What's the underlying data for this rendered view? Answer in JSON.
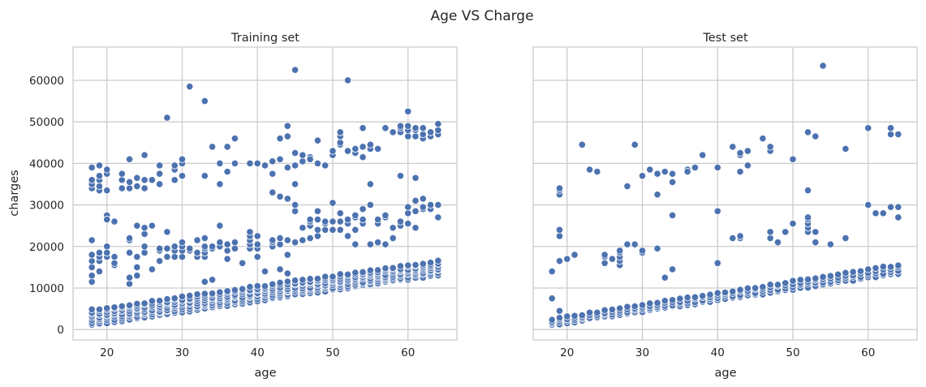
{
  "figure": {
    "title": "Age VS Charge"
  },
  "chart_data": [
    {
      "type": "scatter",
      "title": "Training set",
      "xlabel": "age",
      "ylabel": "charges",
      "xlim": [
        15.5,
        66.5
      ],
      "ylim": [
        -2500,
        68000
      ],
      "xticks": [
        20,
        30,
        40,
        50,
        60
      ],
      "yticks": [
        0,
        10000,
        20000,
        30000,
        40000,
        50000,
        60000
      ],
      "grid": true,
      "marker_color": "#4c72b0",
      "base_trend": {
        "description": "dense lower band of points",
        "x_range": [
          18,
          64
        ],
        "y_at_18": [
          1100,
          4700
        ],
        "y_at_64": [
          13200,
          16500
        ]
      },
      "points": [
        [
          18,
          11500
        ],
        [
          18,
          13000
        ],
        [
          18,
          15000
        ],
        [
          18,
          16500
        ],
        [
          18,
          18000
        ],
        [
          18,
          21500
        ],
        [
          19,
          16500
        ],
        [
          19,
          17500
        ],
        [
          19,
          18500
        ],
        [
          19,
          14000
        ],
        [
          20,
          20000
        ],
        [
          20,
          27500
        ],
        [
          20,
          26500
        ],
        [
          20,
          17500
        ],
        [
          20,
          18500
        ],
        [
          21,
          15500
        ],
        [
          21,
          16000
        ],
        [
          21,
          17500
        ],
        [
          21,
          26000
        ],
        [
          23,
          11000
        ],
        [
          23,
          12500
        ],
        [
          23,
          18500
        ],
        [
          23,
          21500
        ],
        [
          23,
          22000
        ],
        [
          24,
          13000
        ],
        [
          24,
          15000
        ],
        [
          24,
          17500
        ],
        [
          24,
          25000
        ],
        [
          25,
          18500
        ],
        [
          25,
          20000
        ],
        [
          25,
          23000
        ],
        [
          25,
          24500
        ],
        [
          26,
          14500
        ],
        [
          26,
          25000
        ],
        [
          27,
          16500
        ],
        [
          27,
          19000
        ],
        [
          27,
          19500
        ],
        [
          28,
          17500
        ],
        [
          28,
          23500
        ],
        [
          28,
          19500
        ],
        [
          29,
          17500
        ],
        [
          29,
          19000
        ],
        [
          29,
          20000
        ],
        [
          30,
          17500
        ],
        [
          30,
          19000
        ],
        [
          30,
          20000
        ],
        [
          30,
          21000
        ],
        [
          31,
          19000
        ],
        [
          31,
          19500
        ],
        [
          32,
          17500
        ],
        [
          32,
          18500
        ],
        [
          32,
          21500
        ],
        [
          33,
          11500
        ],
        [
          33,
          17500
        ],
        [
          33,
          18500
        ],
        [
          33,
          19500
        ],
        [
          33,
          20000
        ],
        [
          33,
          22000
        ],
        [
          34,
          12000
        ],
        [
          34,
          19500
        ],
        [
          34,
          20000
        ],
        [
          35,
          20000
        ],
        [
          35,
          21000
        ],
        [
          35,
          25000
        ],
        [
          36,
          17000
        ],
        [
          36,
          19000
        ],
        [
          36,
          20500
        ],
        [
          37,
          19500
        ],
        [
          37,
          21000
        ],
        [
          38,
          16000
        ],
        [
          39,
          19500
        ],
        [
          39,
          20500
        ],
        [
          39,
          21500
        ],
        [
          39,
          22500
        ],
        [
          39,
          23500
        ],
        [
          40,
          17500
        ],
        [
          40,
          19500
        ],
        [
          40,
          20500
        ],
        [
          40,
          22500
        ],
        [
          41,
          14000
        ],
        [
          42,
          20000
        ],
        [
          42,
          21000
        ],
        [
          42,
          21500
        ],
        [
          42,
          33000
        ],
        [
          43,
          14500
        ],
        [
          43,
          20500
        ],
        [
          43,
          22000
        ],
        [
          43,
          32000
        ],
        [
          44,
          13500
        ],
        [
          44,
          18000
        ],
        [
          44,
          21500
        ],
        [
          44,
          31500
        ],
        [
          45,
          21000
        ],
        [
          45,
          28500
        ],
        [
          45,
          30000
        ],
        [
          45,
          35000
        ],
        [
          46,
          21500
        ],
        [
          46,
          24500
        ],
        [
          47,
          22000
        ],
        [
          47,
          25000
        ],
        [
          47,
          26000
        ],
        [
          47,
          26500
        ],
        [
          48,
          22500
        ],
        [
          48,
          24000
        ],
        [
          48,
          26500
        ],
        [
          48,
          28500
        ],
        [
          49,
          24000
        ],
        [
          49,
          25500
        ],
        [
          49,
          26000
        ],
        [
          50,
          24000
        ],
        [
          50,
          26000
        ],
        [
          50,
          30500
        ],
        [
          51,
          26000
        ],
        [
          51,
          28000
        ],
        [
          51,
          24000
        ],
        [
          52,
          22500
        ],
        [
          52,
          25500
        ],
        [
          52,
          26500
        ],
        [
          53,
          20500
        ],
        [
          53,
          24000
        ],
        [
          53,
          27000
        ],
        [
          53,
          27500
        ],
        [
          54,
          25500
        ],
        [
          54,
          26500
        ],
        [
          54,
          29000
        ],
        [
          55,
          20500
        ],
        [
          55,
          30000
        ],
        [
          55,
          35000
        ],
        [
          56,
          21000
        ],
        [
          56,
          25500
        ],
        [
          56,
          26500
        ],
        [
          57,
          20500
        ],
        [
          57,
          27000
        ],
        [
          57,
          27500
        ],
        [
          58,
          22000
        ],
        [
          58,
          24500
        ],
        [
          59,
          25000
        ],
        [
          59,
          26000
        ],
        [
          59,
          37000
        ],
        [
          60,
          25500
        ],
        [
          60,
          28000
        ],
        [
          60,
          29500
        ],
        [
          61,
          24500
        ],
        [
          61,
          28500
        ],
        [
          61,
          31000
        ],
        [
          61,
          36500
        ],
        [
          62,
          29000
        ],
        [
          62,
          29500
        ],
        [
          62,
          31500
        ],
        [
          63,
          29000
        ],
        [
          63,
          30000
        ],
        [
          64,
          27000
        ],
        [
          64,
          30000
        ],
        [
          18,
          34000
        ],
        [
          18,
          35000
        ],
        [
          18,
          36000
        ],
        [
          18,
          39000
        ],
        [
          19,
          33500
        ],
        [
          19,
          34500
        ],
        [
          19,
          36000
        ],
        [
          19,
          37000
        ],
        [
          19,
          39500
        ],
        [
          20,
          33500
        ],
        [
          20,
          37500
        ],
        [
          20,
          38500
        ],
        [
          22,
          34000
        ],
        [
          22,
          36000
        ],
        [
          22,
          37500
        ],
        [
          23,
          34000
        ],
        [
          23,
          35500
        ],
        [
          23,
          41000
        ],
        [
          24,
          34500
        ],
        [
          24,
          36500
        ],
        [
          25,
          34000
        ],
        [
          25,
          36000
        ],
        [
          25,
          42000
        ],
        [
          26,
          36000
        ],
        [
          27,
          35000
        ],
        [
          27,
          37500
        ],
        [
          27,
          39500
        ],
        [
          28,
          51000
        ],
        [
          29,
          36000
        ],
        [
          29,
          38500
        ],
        [
          29,
          39500
        ],
        [
          30,
          37000
        ],
        [
          30,
          40000
        ],
        [
          30,
          41000
        ],
        [
          31,
          58500
        ],
        [
          33,
          37000
        ],
        [
          33,
          55000
        ],
        [
          34,
          44000
        ],
        [
          35,
          40000
        ],
        [
          35,
          35000
        ],
        [
          36,
          38000
        ],
        [
          36,
          44000
        ],
        [
          37,
          40000
        ],
        [
          37,
          46000
        ],
        [
          39,
          40000
        ],
        [
          40,
          40000
        ],
        [
          41,
          39500
        ],
        [
          42,
          37500
        ],
        [
          42,
          40500
        ],
        [
          43,
          41000
        ],
        [
          43,
          46000
        ],
        [
          44,
          46500
        ],
        [
          44,
          49000
        ],
        [
          44,
          39000
        ],
        [
          45,
          42500
        ],
        [
          45,
          62500
        ],
        [
          45,
          39500
        ],
        [
          46,
          40500
        ],
        [
          46,
          42000
        ],
        [
          47,
          41500
        ],
        [
          47,
          41000
        ],
        [
          48,
          40000
        ],
        [
          48,
          45500
        ],
        [
          49,
          39500
        ],
        [
          50,
          42000
        ],
        [
          50,
          43000
        ],
        [
          51,
          44500
        ],
        [
          51,
          45000
        ],
        [
          51,
          46500
        ],
        [
          51,
          47500
        ],
        [
          52,
          60000
        ],
        [
          52,
          43000
        ],
        [
          53,
          42500
        ],
        [
          53,
          43500
        ],
        [
          54,
          44000
        ],
        [
          54,
          48500
        ],
        [
          54,
          41500
        ],
        [
          55,
          43500
        ],
        [
          55,
          44500
        ],
        [
          56,
          43500
        ],
        [
          57,
          48500
        ],
        [
          58,
          47500
        ],
        [
          59,
          47500
        ],
        [
          59,
          48500
        ],
        [
          59,
          49000
        ],
        [
          60,
          46500
        ],
        [
          60,
          48000
        ],
        [
          60,
          49000
        ],
        [
          60,
          52500
        ],
        [
          61,
          46500
        ],
        [
          61,
          48000
        ],
        [
          61,
          48500
        ],
        [
          62,
          46000
        ],
        [
          62,
          47000
        ],
        [
          62,
          48500
        ],
        [
          63,
          46500
        ],
        [
          63,
          47500
        ],
        [
          64,
          47000
        ],
        [
          64,
          48000
        ],
        [
          64,
          49500
        ]
      ]
    },
    {
      "type": "scatter",
      "title": "Test set",
      "xlabel": "age",
      "ylabel": "",
      "xlim": [
        15.5,
        66.5
      ],
      "ylim": [
        -2500,
        68000
      ],
      "xticks": [
        20,
        30,
        40,
        50,
        60
      ],
      "yticks": [
        0,
        10000,
        20000,
        30000,
        40000,
        50000,
        60000
      ],
      "grid": true,
      "marker_color": "#4c72b0",
      "base_trend": {
        "description": "dense lower band of points",
        "x_range": [
          18,
          64
        ],
        "y_at_18": [
          1100,
          2500
        ],
        "y_at_64": [
          13500,
          15500
        ]
      },
      "points": [
        [
          18,
          7500
        ],
        [
          18,
          14000
        ],
        [
          19,
          4500
        ],
        [
          19,
          16500
        ],
        [
          19,
          22500
        ],
        [
          19,
          24000
        ],
        [
          20,
          17000
        ],
        [
          21,
          18000
        ],
        [
          25,
          16000
        ],
        [
          25,
          17500
        ],
        [
          25,
          18000
        ],
        [
          26,
          17000
        ],
        [
          27,
          15500
        ],
        [
          27,
          16500
        ],
        [
          27,
          17500
        ],
        [
          27,
          18500
        ],
        [
          27,
          19000
        ],
        [
          28,
          20500
        ],
        [
          29,
          20500
        ],
        [
          30,
          18500
        ],
        [
          30,
          19000
        ],
        [
          32,
          19500
        ],
        [
          32,
          32500
        ],
        [
          33,
          12500
        ],
        [
          34,
          14500
        ],
        [
          34,
          27500
        ],
        [
          40,
          16000
        ],
        [
          40,
          28500
        ],
        [
          42,
          22000
        ],
        [
          43,
          22000
        ],
        [
          43,
          22500
        ],
        [
          44,
          39500
        ],
        [
          47,
          22000
        ],
        [
          47,
          23500
        ],
        [
          48,
          21000
        ],
        [
          49,
          23500
        ],
        [
          50,
          25500
        ],
        [
          52,
          23500
        ],
        [
          52,
          24500
        ],
        [
          52,
          25500
        ],
        [
          52,
          26500
        ],
        [
          52,
          27000
        ],
        [
          52,
          33500
        ],
        [
          53,
          21000
        ],
        [
          53,
          23500
        ],
        [
          55,
          20500
        ],
        [
          57,
          22000
        ],
        [
          60,
          30000
        ],
        [
          61,
          28000
        ],
        [
          62,
          28000
        ],
        [
          63,
          29500
        ],
        [
          64,
          27000
        ],
        [
          64,
          29500
        ],
        [
          19,
          32500
        ],
        [
          19,
          33500
        ],
        [
          19,
          34000
        ],
        [
          22,
          44500
        ],
        [
          23,
          38500
        ],
        [
          24,
          38000
        ],
        [
          28,
          34500
        ],
        [
          29,
          44500
        ],
        [
          30,
          37000
        ],
        [
          31,
          38500
        ],
        [
          32,
          37500
        ],
        [
          33,
          38000
        ],
        [
          34,
          35500
        ],
        [
          34,
          37500
        ],
        [
          36,
          38500
        ],
        [
          36,
          38000
        ],
        [
          37,
          39000
        ],
        [
          38,
          42000
        ],
        [
          40,
          39000
        ],
        [
          42,
          44000
        ],
        [
          43,
          38000
        ],
        [
          43,
          42000
        ],
        [
          43,
          42500
        ],
        [
          44,
          43000
        ],
        [
          46,
          46000
        ],
        [
          47,
          43000
        ],
        [
          47,
          44000
        ],
        [
          50,
          41000
        ],
        [
          52,
          47500
        ],
        [
          53,
          46500
        ],
        [
          54,
          63500
        ],
        [
          57,
          43500
        ],
        [
          60,
          48500
        ],
        [
          63,
          47000
        ],
        [
          63,
          48500
        ],
        [
          64,
          47000
        ]
      ]
    }
  ]
}
